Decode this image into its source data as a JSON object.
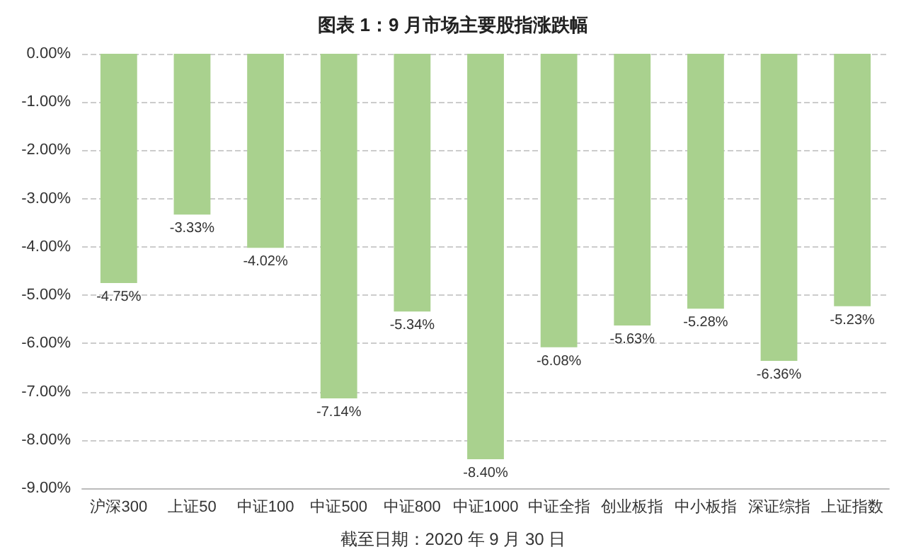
{
  "chart_data": {
    "type": "bar",
    "title": "图表 1：9 月市场主要股指涨跌幅",
    "categories": [
      "沪深300",
      "上证50",
      "中证100",
      "中证500",
      "中证800",
      "中证1000",
      "中证全指",
      "创业板指",
      "中小板指",
      "深证综指",
      "上证指数"
    ],
    "values": [
      -4.75,
      -3.33,
      -4.02,
      -7.14,
      -5.34,
      -8.4,
      -6.08,
      -5.63,
      -5.28,
      -6.36,
      -5.23
    ],
    "value_labels": [
      "-4.75%",
      "-3.33%",
      "-4.02%",
      "-7.14%",
      "-5.34%",
      "-8.40%",
      "-6.08%",
      "-5.63%",
      "-5.28%",
      "-6.36%",
      "-5.23%"
    ],
    "color": "#a9d18e",
    "ylim": [
      -9,
      0
    ],
    "yticks": [
      {
        "value": 0,
        "label": "0.00%"
      },
      {
        "value": -1,
        "label": "-1.00%"
      },
      {
        "value": -2,
        "label": "-2.00%"
      },
      {
        "value": -3,
        "label": "-3.00%"
      },
      {
        "value": -4,
        "label": "-4.00%"
      },
      {
        "value": -5,
        "label": "-5.00%"
      },
      {
        "value": -6,
        "label": "-6.00%"
      },
      {
        "value": -7,
        "label": "-7.00%"
      },
      {
        "value": -8,
        "label": "-8.00%"
      },
      {
        "value": -9,
        "label": "-9.00%"
      }
    ],
    "grid": "y",
    "annotations": [
      "截至日期：2020 年 9 月 30 日"
    ]
  }
}
